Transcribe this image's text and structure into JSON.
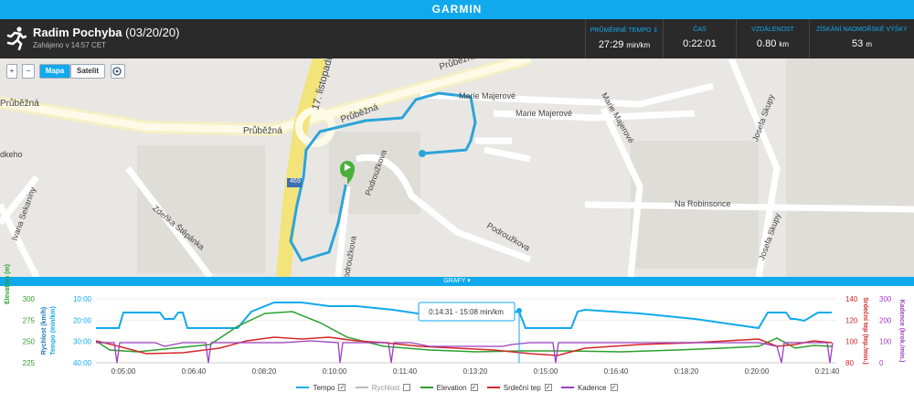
{
  "brand": "GARMIN",
  "activity": {
    "name": "Radim Pochyba",
    "date": "(03/20/20)",
    "started": "Zahájeno v 14:57 CET",
    "icon": "runner-icon"
  },
  "stats": [
    {
      "label": "PRŮMĚRNÉ TEMPO ⇕",
      "value": "27:29",
      "unit": "min/km"
    },
    {
      "label": "ČAS",
      "value": "0:22:01",
      "unit": ""
    },
    {
      "label": "VZDÁLENOST",
      "value": "0.80",
      "unit": "km"
    },
    {
      "label": "ZÍSKÁNÍ NADMOŘSKÉ VÝŠKY",
      "value": "53",
      "unit": "m"
    }
  ],
  "map": {
    "zoom_in": "+",
    "zoom_out": "−",
    "mode_map": "Mapa",
    "mode_satellite": "Satelit",
    "streets": {
      "s1": "Průběžná",
      "s2": "Průběžná",
      "s3": "Průběžná",
      "s4": "Průběžná",
      "s5": "Marie Majerové",
      "s6": "Marie Majerové",
      "s7": "Marie Majerové",
      "s8": "Josefa Skupy",
      "s9": "Josefa Skupy",
      "s10": "Na Robinsonce",
      "s11": "Podroužkova",
      "s12": "Podroužkova",
      "s13": "Podroužkova",
      "s14": "Zdeňka Štěpánka",
      "s15": "Ivana Sekaniny",
      "s16": "17. listopadu",
      "s17": "dkeho",
      "road_no": "469"
    }
  },
  "grafy_label": "GRAFY ▾",
  "chart_data": {
    "type": "line",
    "x_ticks": [
      "0:05:00",
      "0:06:40",
      "0:08:20",
      "0:10:00",
      "0:11:40",
      "0:13:20",
      "0:15:00",
      "0:16:40",
      "0:18:20",
      "0:20:00",
      "0:21:40"
    ],
    "axes": {
      "elevation": {
        "label": "Elevation (m)",
        "ticks": [
          "300",
          "275",
          "250",
          "225"
        ],
        "color": "#2ca02c"
      },
      "speed": {
        "label": "Rychlost (km/h)",
        "color": "#1f77b4"
      },
      "tempo": {
        "label": "Tempo (min/km)",
        "ticks": [
          "10:00",
          "20:00",
          "30:00",
          "40:00"
        ],
        "color": "#11a9ed"
      },
      "heart": {
        "label": "Srdeční tep (tep./min.)",
        "ticks": [
          "140",
          "120",
          "100",
          "80"
        ],
        "color": "#d62728"
      },
      "cadence": {
        "label": "Kadence (krok./min.)",
        "ticks": [
          "300",
          "200",
          "100",
          "0"
        ],
        "color": "#9b3fbf"
      }
    },
    "tooltip": "0:14:31 - 15:08 min/km",
    "series": [
      {
        "name": "Tempo",
        "color": "#11a9ed",
        "checked": true,
        "t": [
          0,
          4,
          5,
          5,
          16,
          17,
          17,
          40,
          45,
          50,
          55,
          60,
          65,
          70,
          72,
          75,
          80,
          82,
          85,
          88,
          90,
          98,
          110,
          113,
          115,
          125,
          140,
          150,
          155,
          165,
          170,
          175,
          180,
          185,
          190,
          200,
          205,
          210,
          260,
          275,
          277,
          278,
          290,
          295,
          300,
          303,
          305,
          310,
          315,
          320,
          330,
          335,
          340,
          350,
          357
        ],
        "v": [
          24,
          24,
          24,
          15,
          15,
          15,
          24,
          24,
          24,
          24,
          24,
          24,
          24,
          24,
          24,
          24,
          24,
          24,
          24,
          24,
          24,
          24,
          24,
          24,
          24,
          24,
          24,
          24,
          24,
          24,
          24,
          24,
          24,
          24,
          24,
          24,
          24,
          24,
          24,
          24,
          24,
          24,
          24,
          24,
          24,
          24,
          24,
          24,
          24,
          24,
          24,
          24,
          24,
          24,
          24
        ]
      },
      {
        "name": "Rychlost",
        "color": "#bbbbbb",
        "checked": false
      },
      {
        "name": "Elevation",
        "color": "#2ca02c",
        "checked": true
      },
      {
        "name": "Srdeční tep",
        "color": "#d62728",
        "checked": true
      },
      {
        "name": "Kadence",
        "color": "#9b3fbf",
        "checked": true
      }
    ]
  }
}
